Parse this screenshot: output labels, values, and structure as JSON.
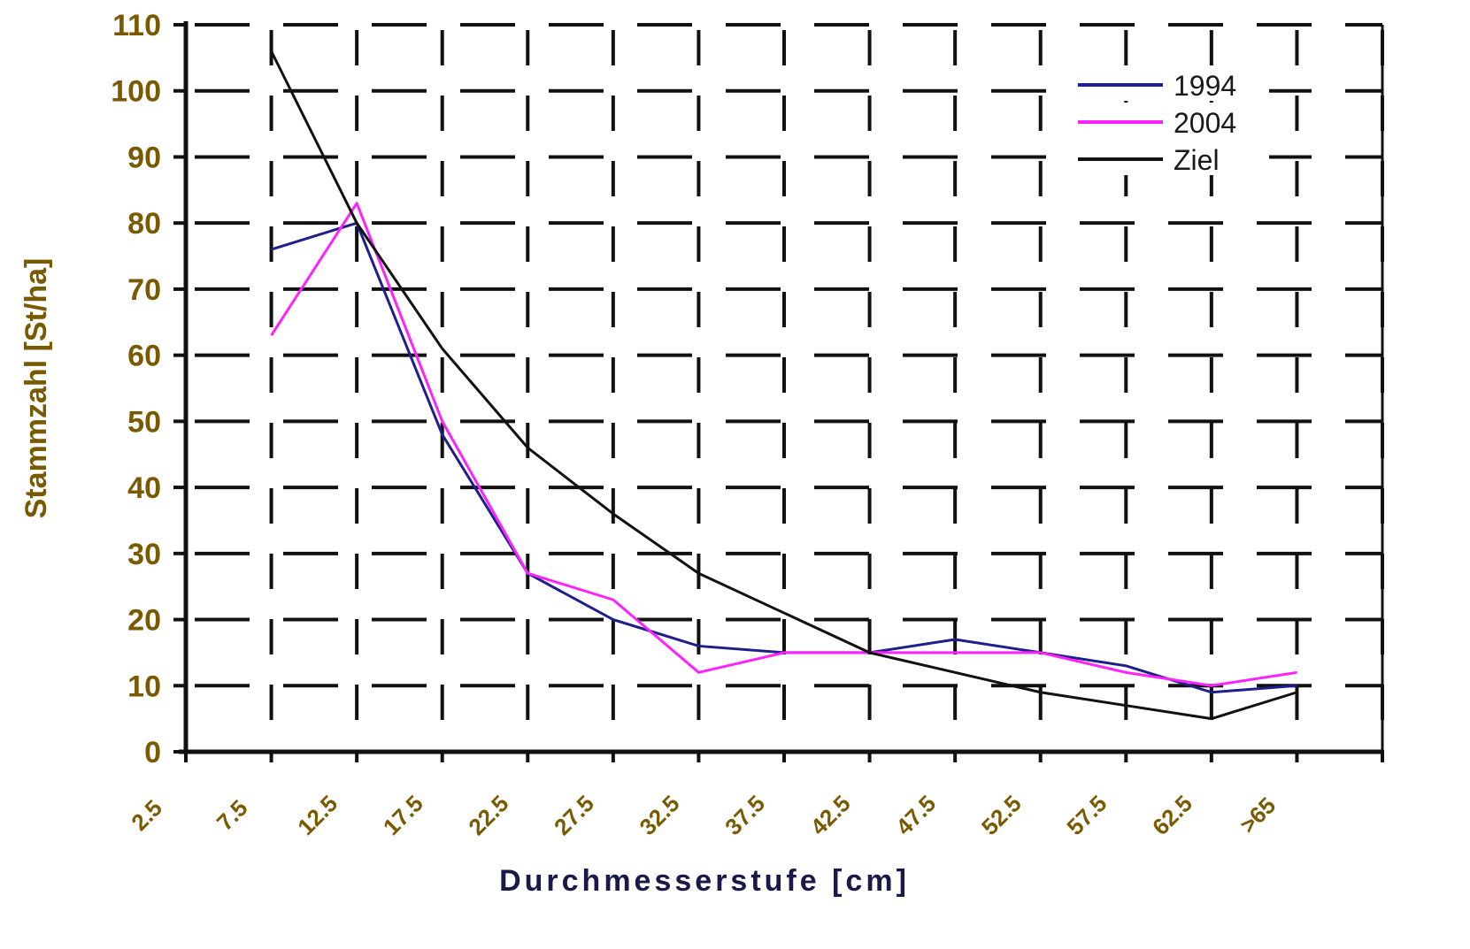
{
  "chart_data": {
    "type": "line",
    "categories": [
      "2.5",
      "7.5",
      "12.5",
      "17.5",
      "22.5",
      "27.5",
      "32.5",
      "37.5",
      "42.5",
      "47.5",
      "52.5",
      "57.5",
      "62.5",
      ">65"
    ],
    "series": [
      {
        "name": "1994",
        "color": "#1f1f8c",
        "values": [
          null,
          76,
          80,
          48,
          27,
          20,
          16,
          15,
          15,
          17,
          15,
          13,
          9,
          10
        ]
      },
      {
        "name": "2004",
        "color": "#ff22ff",
        "values": [
          null,
          63,
          83,
          50,
          27,
          23,
          12,
          15,
          15,
          15,
          15,
          12,
          10,
          12
        ]
      },
      {
        "name": "Ziel",
        "color": "#111111",
        "values": [
          null,
          106,
          80,
          61,
          46,
          36,
          27,
          21,
          15,
          12,
          9,
          7,
          5,
          9
        ]
      }
    ],
    "xlabel": "Durchmesserstufe [cm]",
    "ylabel": "Stammzahl [St/ha]",
    "ylim": [
      0,
      110
    ],
    "yticks": [
      "0",
      "10",
      "20",
      "30",
      "40",
      "50",
      "60",
      "70",
      "80",
      "90",
      "100",
      "110"
    ],
    "grid": true,
    "legend_position": "top-right",
    "colors": {
      "tick_text": "#7a5a00",
      "axis": "#111111",
      "grid": "#111111",
      "frame": "#111111"
    }
  }
}
